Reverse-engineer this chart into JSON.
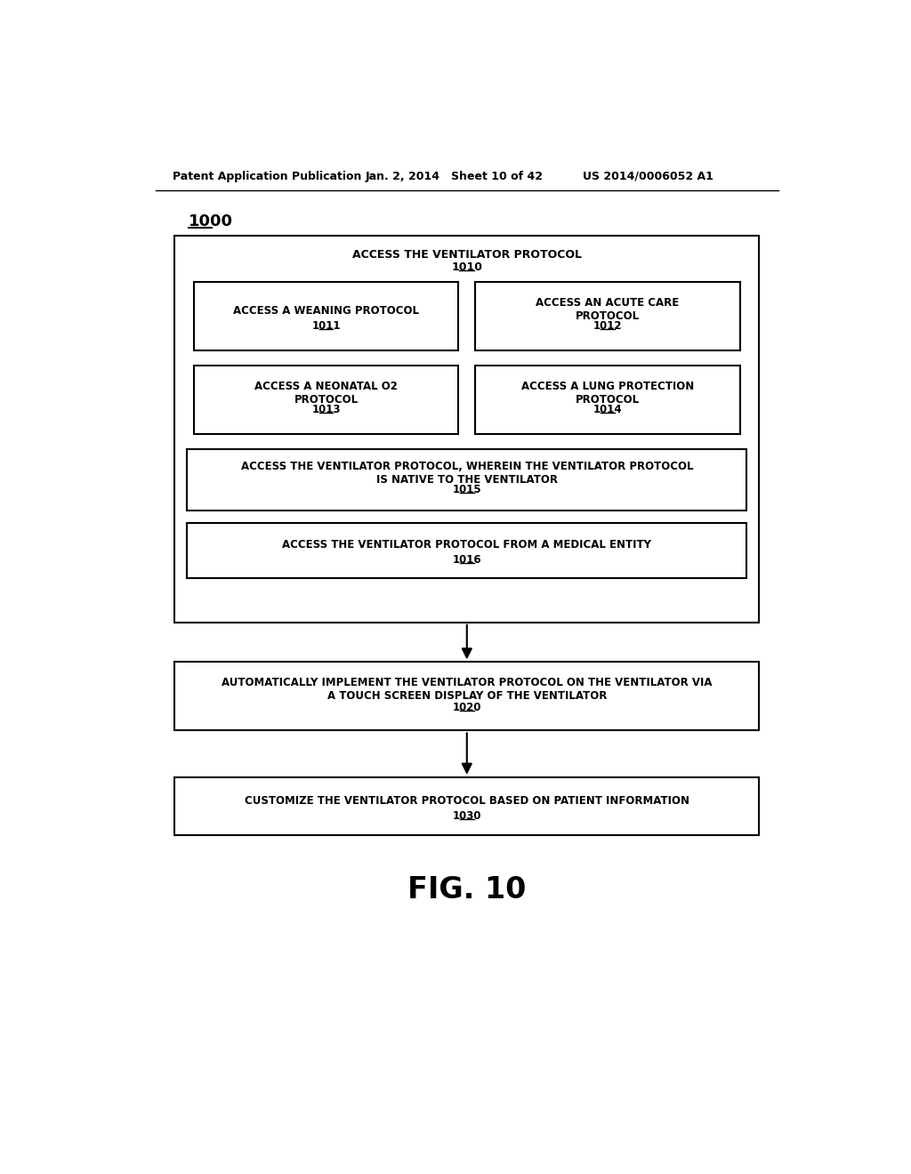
{
  "header_left": "Patent Application Publication",
  "header_mid": "Jan. 2, 2014   Sheet 10 of 42",
  "header_right": "US 2014/0006052 A1",
  "fig_label": "1000",
  "fig_caption": "FIG. 10",
  "outer_box": {
    "label": "ACCESS THE VENTILATOR PROTOCOL",
    "number": "1010"
  },
  "sub_boxes": [
    {
      "label": "ACCESS A WEANING PROTOCOL",
      "number": "1011",
      "col": 0
    },
    {
      "label": "ACCESS AN ACUTE CARE\nPROTOCOL",
      "number": "1012",
      "col": 1
    },
    {
      "label": "ACCESS A NEONATAL O2\nPROTOCOL",
      "number": "1013",
      "col": 0
    },
    {
      "label": "ACCESS A LUNG PROTECTION\nPROTOCOL",
      "number": "1014",
      "col": 1
    }
  ],
  "inner_boxes": [
    {
      "label": "ACCESS THE VENTILATOR PROTOCOL, WHEREIN THE VENTILATOR PROTOCOL\nIS NATIVE TO THE VENTILATOR",
      "number": "1015"
    },
    {
      "label": "ACCESS THE VENTILATOR PROTOCOL FROM A MEDICAL ENTITY",
      "number": "1016"
    }
  ],
  "flow_boxes": [
    {
      "label": "AUTOMATICALLY IMPLEMENT THE VENTILATOR PROTOCOL ON THE VENTILATOR VIA\nA TOUCH SCREEN DISPLAY OF THE VENTILATOR",
      "number": "1020"
    },
    {
      "label": "CUSTOMIZE THE VENTILATOR PROTOCOL BASED ON PATIENT INFORMATION",
      "number": "1030"
    }
  ]
}
